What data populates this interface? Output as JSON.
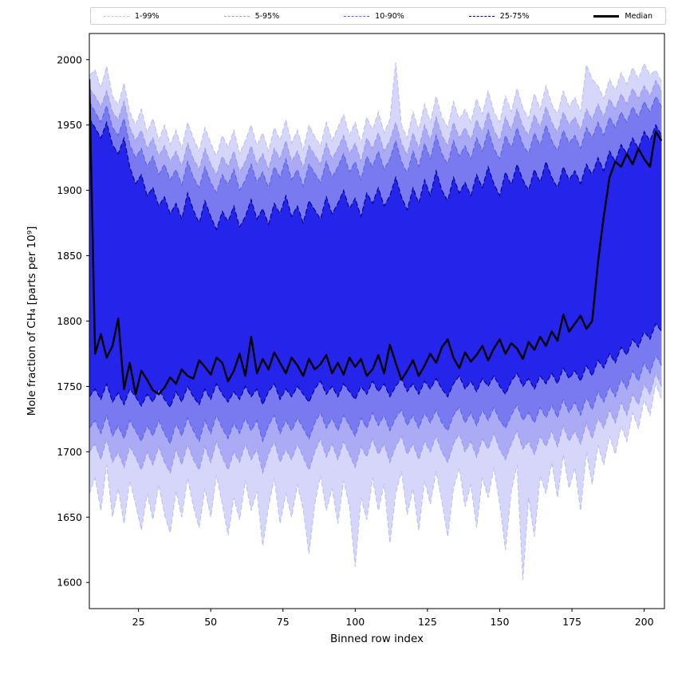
{
  "chart_data": {
    "type": "area",
    "title": "",
    "xlabel": "Binned row index",
    "ylabel": "Mole fraction of CH₄ [parts per 10⁹]",
    "xlim": [
      8,
      207
    ],
    "ylim": [
      1580,
      2020
    ],
    "xticks": [
      25,
      50,
      75,
      100,
      125,
      150,
      175,
      200
    ],
    "yticks": [
      1600,
      1650,
      1700,
      1750,
      1800,
      1850,
      1900,
      1950,
      2000
    ],
    "grid": false,
    "legend_position": "top",
    "x": [
      8,
      10,
      12,
      14,
      16,
      18,
      20,
      22,
      24,
      26,
      28,
      30,
      32,
      34,
      36,
      38,
      40,
      42,
      44,
      46,
      48,
      50,
      52,
      54,
      56,
      58,
      60,
      62,
      64,
      66,
      68,
      70,
      72,
      74,
      76,
      78,
      80,
      82,
      84,
      86,
      88,
      90,
      92,
      94,
      96,
      98,
      100,
      102,
      104,
      106,
      108,
      110,
      112,
      114,
      116,
      118,
      120,
      122,
      124,
      126,
      128,
      130,
      132,
      134,
      136,
      138,
      140,
      142,
      144,
      146,
      148,
      150,
      152,
      154,
      156,
      158,
      160,
      162,
      164,
      166,
      168,
      170,
      172,
      174,
      176,
      178,
      180,
      182,
      184,
      186,
      188,
      190,
      192,
      194,
      196,
      198,
      200,
      202,
      204,
      206
    ],
    "bands": [
      {
        "name": "1-99%",
        "fill": "#d6d6fa",
        "edge": "#bcc1f2",
        "upper": [
          1988,
          1992,
          1978,
          1995,
          1972,
          1965,
          1982,
          1960,
          1950,
          1962,
          1944,
          1955,
          1938,
          1950,
          1935,
          1946,
          1932,
          1952,
          1940,
          1930,
          1948,
          1936,
          1926,
          1942,
          1933,
          1946,
          1928,
          1938,
          1950,
          1934,
          1944,
          1930,
          1948,
          1938,
          1954,
          1936,
          1946,
          1931,
          1950,
          1941,
          1934,
          1952,
          1938,
          1948,
          1958,
          1942,
          1952,
          1936,
          1956,
          1946,
          1960,
          1944,
          1954,
          1998,
          1950,
          1940,
          1960,
          1946,
          1966,
          1952,
          1972,
          1956,
          1948,
          1968,
          1954,
          1962,
          1952,
          1970,
          1958,
          1976,
          1960,
          1952,
          1972,
          1960,
          1978,
          1963,
          1955,
          1974,
          1962,
          1980,
          1966,
          1958,
          1976,
          1964,
          1971,
          1960,
          1996,
          1985,
          1980,
          1970,
          1985,
          1976,
          1990,
          1981,
          1994,
          1985,
          1997,
          1988,
          1992,
          1983
        ],
        "lower": [
          1668,
          1680,
          1655,
          1690,
          1650,
          1672,
          1645,
          1678,
          1660,
          1640,
          1668,
          1648,
          1675,
          1652,
          1638,
          1670,
          1650,
          1680,
          1658,
          1642,
          1672,
          1650,
          1682,
          1660,
          1636,
          1665,
          1648,
          1678,
          1655,
          1670,
          1628,
          1658,
          1680,
          1645,
          1668,
          1650,
          1675,
          1656,
          1622,
          1660,
          1682,
          1655,
          1672,
          1645,
          1678,
          1658,
          1612,
          1665,
          1648,
          1680,
          1655,
          1675,
          1630,
          1668,
          1685,
          1652,
          1672,
          1640,
          1678,
          1660,
          1685,
          1662,
          1635,
          1672,
          1688,
          1658,
          1675,
          1642,
          1680,
          1665,
          1688,
          1660,
          1625,
          1670,
          1690,
          1602,
          1665,
          1635,
          1682,
          1668,
          1692,
          1665,
          1698,
          1672,
          1688,
          1655,
          1700,
          1675,
          1705,
          1690,
          1712,
          1698,
          1720,
          1708,
          1730,
          1718,
          1740,
          1728,
          1752,
          1740
        ]
      },
      {
        "name": "5-95%",
        "fill": "#ababf5",
        "edge": "#9a9ae8",
        "upper": [
          1978,
          1972,
          1964,
          1976,
          1960,
          1954,
          1968,
          1948,
          1938,
          1946,
          1932,
          1940,
          1926,
          1934,
          1922,
          1930,
          1918,
          1936,
          1924,
          1916,
          1932,
          1920,
          1912,
          1926,
          1918,
          1930,
          1914,
          1922,
          1934,
          1920,
          1928,
          1916,
          1932,
          1924,
          1938,
          1922,
          1930,
          1917,
          1934,
          1927,
          1920,
          1936,
          1924,
          1932,
          1942,
          1928,
          1936,
          1922,
          1940,
          1932,
          1944,
          1930,
          1938,
          1952,
          1936,
          1927,
          1944,
          1932,
          1950,
          1938,
          1956,
          1942,
          1934,
          1952,
          1940,
          1948,
          1938,
          1954,
          1944,
          1960,
          1946,
          1938,
          1956,
          1946,
          1962,
          1949,
          1942,
          1958,
          1948,
          1964,
          1952,
          1944,
          1960,
          1950,
          1956,
          1946,
          1962,
          1954,
          1966,
          1956,
          1970,
          1962,
          1974,
          1966,
          1978,
          1970,
          1980,
          1972,
          1984,
          1976
        ],
        "lower": [
          1700,
          1706,
          1694,
          1710,
          1692,
          1700,
          1688,
          1704,
          1696,
          1686,
          1700,
          1690,
          1704,
          1692,
          1684,
          1702,
          1690,
          1706,
          1694,
          1686,
          1704,
          1692,
          1708,
          1696,
          1686,
          1700,
          1692,
          1706,
          1694,
          1702,
          1684,
          1698,
          1708,
          1692,
          1702,
          1694,
          1706,
          1696,
          1686,
          1700,
          1710,
          1696,
          1706,
          1694,
          1708,
          1698,
          1688,
          1704,
          1696,
          1710,
          1698,
          1706,
          1692,
          1704,
          1712,
          1698,
          1706,
          1694,
          1708,
          1700,
          1712,
          1700,
          1692,
          1706,
          1714,
          1700,
          1708,
          1696,
          1710,
          1702,
          1714,
          1702,
          1694,
          1706,
          1716,
          1702,
          1708,
          1698,
          1712,
          1704,
          1716,
          1704,
          1720,
          1708,
          1716,
          1706,
          1722,
          1710,
          1726,
          1718,
          1732,
          1722,
          1738,
          1728,
          1744,
          1736,
          1752,
          1744,
          1760,
          1750
        ]
      },
      {
        "name": "10-90%",
        "fill": "#7a7af0",
        "edge": "#5a64e0",
        "upper": [
          1968,
          1960,
          1952,
          1965,
          1948,
          1942,
          1955,
          1935,
          1925,
          1932,
          1918,
          1926,
          1912,
          1920,
          1908,
          1916,
          1904,
          1922,
          1910,
          1902,
          1918,
          1906,
          1898,
          1912,
          1904,
          1916,
          1900,
          1908,
          1920,
          1906,
          1914,
          1902,
          1918,
          1910,
          1924,
          1908,
          1916,
          1903,
          1920,
          1913,
          1906,
          1922,
          1910,
          1918,
          1928,
          1914,
          1922,
          1908,
          1926,
          1918,
          1930,
          1916,
          1924,
          1938,
          1922,
          1913,
          1930,
          1918,
          1936,
          1924,
          1942,
          1928,
          1920,
          1938,
          1926,
          1934,
          1924,
          1940,
          1930,
          1946,
          1932,
          1924,
          1942,
          1932,
          1948,
          1935,
          1928,
          1944,
          1934,
          1950,
          1938,
          1930,
          1946,
          1936,
          1942,
          1932,
          1948,
          1940,
          1952,
          1942,
          1956,
          1948,
          1960,
          1952,
          1964,
          1956,
          1968,
          1960,
          1972,
          1964
        ],
        "lower": [
          1718,
          1724,
          1714,
          1728,
          1712,
          1720,
          1710,
          1724,
          1716,
          1708,
          1720,
          1712,
          1724,
          1714,
          1706,
          1722,
          1712,
          1726,
          1716,
          1708,
          1724,
          1714,
          1728,
          1718,
          1710,
          1722,
          1714,
          1726,
          1716,
          1724,
          1708,
          1720,
          1728,
          1714,
          1724,
          1716,
          1726,
          1718,
          1710,
          1722,
          1730,
          1718,
          1726,
          1716,
          1728,
          1720,
          1712,
          1726,
          1718,
          1730,
          1720,
          1728,
          1716,
          1726,
          1732,
          1720,
          1728,
          1718,
          1730,
          1722,
          1732,
          1722,
          1716,
          1728,
          1734,
          1722,
          1730,
          1720,
          1732,
          1724,
          1734,
          1724,
          1718,
          1728,
          1736,
          1724,
          1730,
          1722,
          1734,
          1726,
          1736,
          1726,
          1740,
          1730,
          1738,
          1728,
          1742,
          1732,
          1746,
          1738,
          1750,
          1742,
          1756,
          1748,
          1762,
          1754,
          1768,
          1760,
          1774,
          1766
        ]
      },
      {
        "name": "25-75%",
        "fill": "#2424ea",
        "edge": "#00008b",
        "upper": [
          1955,
          1948,
          1940,
          1952,
          1935,
          1928,
          1940,
          1918,
          1905,
          1912,
          1896,
          1902,
          1888,
          1895,
          1882,
          1890,
          1878,
          1898,
          1885,
          1875,
          1892,
          1880,
          1870,
          1884,
          1876,
          1888,
          1872,
          1880,
          1893,
          1878,
          1886,
          1874,
          1890,
          1882,
          1896,
          1880,
          1888,
          1875,
          1892,
          1885,
          1878,
          1895,
          1882,
          1890,
          1900,
          1886,
          1894,
          1880,
          1898,
          1890,
          1902,
          1888,
          1896,
          1910,
          1895,
          1885,
          1902,
          1890,
          1908,
          1896,
          1915,
          1900,
          1892,
          1910,
          1898,
          1906,
          1896,
          1912,
          1902,
          1918,
          1905,
          1896,
          1914,
          1904,
          1920,
          1908,
          1900,
          1916,
          1906,
          1922,
          1910,
          1902,
          1918,
          1908,
          1915,
          1905,
          1920,
          1912,
          1925,
          1915,
          1930,
          1922,
          1935,
          1928,
          1940,
          1932,
          1945,
          1938,
          1950,
          1942
        ],
        "lower": [
          1742,
          1748,
          1740,
          1752,
          1738,
          1745,
          1736,
          1748,
          1742,
          1735,
          1744,
          1738,
          1748,
          1740,
          1734,
          1746,
          1738,
          1750,
          1742,
          1736,
          1748,
          1740,
          1752,
          1744,
          1738,
          1746,
          1740,
          1750,
          1742,
          1748,
          1736,
          1746,
          1752,
          1740,
          1748,
          1742,
          1750,
          1744,
          1738,
          1748,
          1754,
          1744,
          1750,
          1742,
          1752,
          1746,
          1740,
          1750,
          1744,
          1754,
          1746,
          1752,
          1742,
          1750,
          1756,
          1746,
          1752,
          1744,
          1754,
          1748,
          1756,
          1748,
          1742,
          1752,
          1758,
          1748,
          1754,
          1746,
          1756,
          1750,
          1758,
          1750,
          1744,
          1754,
          1760,
          1750,
          1756,
          1748,
          1758,
          1752,
          1760,
          1752,
          1764,
          1756,
          1762,
          1754,
          1766,
          1758,
          1770,
          1764,
          1775,
          1768,
          1780,
          1774,
          1786,
          1780,
          1792,
          1786,
          1798,
          1792
        ]
      }
    ],
    "median": {
      "name": "Median",
      "color": "#000000",
      "values": [
        1985,
        1775,
        1790,
        1772,
        1781,
        1802,
        1748,
        1768,
        1744,
        1762,
        1755,
        1747,
        1744,
        1749,
        1757,
        1752,
        1763,
        1758,
        1756,
        1770,
        1765,
        1759,
        1772,
        1768,
        1754,
        1762,
        1775,
        1758,
        1788,
        1760,
        1771,
        1763,
        1776,
        1768,
        1760,
        1772,
        1766,
        1758,
        1771,
        1763,
        1767,
        1774,
        1760,
        1768,
        1759,
        1772,
        1765,
        1771,
        1758,
        1763,
        1774,
        1760,
        1782,
        1768,
        1755,
        1762,
        1770,
        1758,
        1766,
        1775,
        1768,
        1780,
        1786,
        1772,
        1764,
        1776,
        1769,
        1774,
        1781,
        1770,
        1779,
        1786,
        1775,
        1783,
        1779,
        1771,
        1784,
        1778,
        1788,
        1781,
        1792,
        1785,
        1805,
        1792,
        1798,
        1804,
        1794,
        1800,
        1845,
        1880,
        1910,
        1922,
        1918,
        1928,
        1920,
        1932,
        1924,
        1918,
        1945,
        1938
      ]
    }
  }
}
